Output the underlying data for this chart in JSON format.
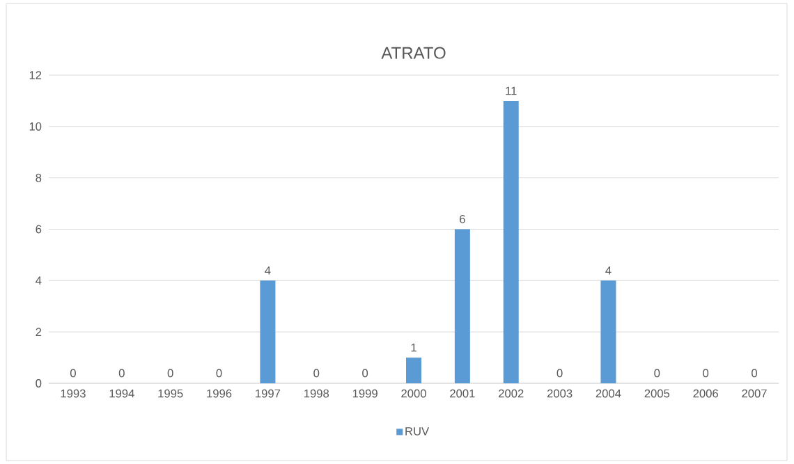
{
  "chart_data": {
    "type": "bar",
    "title": "ATRATO",
    "categories": [
      "1993",
      "1994",
      "1995",
      "1996",
      "1997",
      "1998",
      "1999",
      "2000",
      "2001",
      "2002",
      "2003",
      "2004",
      "2005",
      "2006",
      "2007"
    ],
    "series": [
      {
        "name": "RUV",
        "color": "#5b9bd5",
        "values": [
          0,
          0,
          0,
          0,
          4,
          0,
          0,
          1,
          6,
          11,
          0,
          4,
          0,
          0,
          0
        ]
      }
    ],
    "ylim": [
      0,
      12
    ],
    "yticks": [
      0,
      2,
      4,
      6,
      8,
      10,
      12
    ],
    "grid": "y",
    "legend": "bottom",
    "data_labels": true
  }
}
